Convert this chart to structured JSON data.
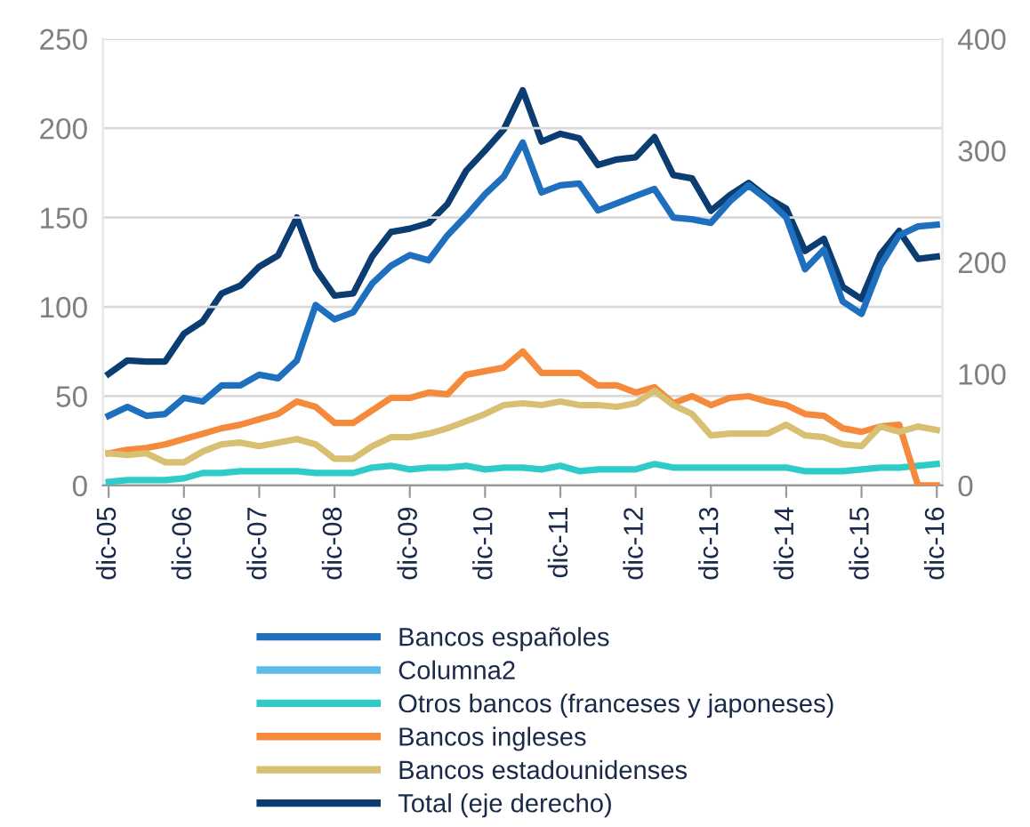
{
  "chart_data": {
    "type": "line",
    "categories": [
      "dic-05",
      null,
      null,
      null,
      "dic-06",
      null,
      null,
      null,
      "dic-07",
      null,
      null,
      null,
      "dic-08",
      null,
      null,
      null,
      "dic-09",
      null,
      null,
      null,
      "dic-10",
      null,
      null,
      null,
      "dic-11",
      null,
      null,
      null,
      "dic-12",
      null,
      null,
      null,
      "dic-13",
      null,
      null,
      null,
      "dic-14",
      null,
      null,
      null,
      "dic-15",
      null,
      null,
      null,
      "dic-16"
    ],
    "series": [
      {
        "name": "Bancos españoles",
        "color": "#1f6fbf",
        "values": [
          39,
          44,
          39,
          40,
          49,
          47,
          56,
          56,
          62,
          60,
          70,
          101,
          93,
          97,
          113,
          123,
          129,
          126,
          140,
          151,
          163,
          173,
          192,
          164,
          168,
          169,
          154,
          158,
          162,
          166,
          150,
          149,
          147,
          159,
          168,
          160,
          150,
          121,
          132,
          103,
          96,
          123,
          140,
          145,
          146
        ]
      },
      {
        "name": "Columna2",
        "color": "#5bbcea",
        "values": [
          null,
          null,
          null,
          null,
          null,
          null,
          null,
          null,
          null,
          null,
          null,
          null,
          null,
          null,
          null,
          null,
          null,
          null,
          null,
          null,
          null,
          null,
          null,
          null,
          null,
          null,
          null,
          null,
          null,
          null,
          null,
          null,
          null,
          null,
          null,
          null,
          null,
          null,
          null,
          null,
          null,
          null,
          null,
          null,
          null
        ]
      },
      {
        "name": "Otros bancos (franceses y japoneses)",
        "color": "#2ecbc8",
        "values": [
          2,
          3,
          3,
          3,
          4,
          7,
          7,
          8,
          8,
          8,
          8,
          7,
          7,
          7,
          10,
          11,
          9,
          10,
          10,
          11,
          9,
          10,
          10,
          9,
          11,
          8,
          9,
          9,
          9,
          12,
          10,
          10,
          10,
          10,
          10,
          10,
          10,
          8,
          8,
          8,
          9,
          10,
          10,
          11,
          12
        ]
      },
      {
        "name": "Bancos ingleses",
        "color": "#f58a3c",
        "values": [
          18,
          20,
          21,
          23,
          26,
          29,
          32,
          34,
          37,
          40,
          47,
          44,
          35,
          35,
          42,
          49,
          49,
          52,
          51,
          62,
          64,
          66,
          75,
          63,
          63,
          63,
          56,
          56,
          52,
          55,
          46,
          50,
          45,
          49,
          50,
          47,
          45,
          40,
          39,
          32,
          30,
          33,
          34,
          0,
          0
        ]
      },
      {
        "name": "Bancos estadounidenses",
        "color": "#d9bf72",
        "values": [
          18,
          17,
          18,
          13,
          13,
          19,
          23,
          24,
          22,
          24,
          26,
          23,
          15,
          15,
          22,
          27,
          27,
          29,
          32,
          36,
          40,
          45,
          46,
          45,
          47,
          45,
          45,
          44,
          46,
          53,
          45,
          40,
          28,
          29,
          29,
          29,
          34,
          28,
          27,
          23,
          22,
          33,
          30,
          33,
          31
        ]
      },
      {
        "name": "Total (eje derecho)",
        "color": "#0b3c72",
        "axis": "y2",
        "values": [
          100,
          112,
          111,
          111,
          136,
          147,
          172,
          179,
          196,
          206,
          240,
          194,
          170,
          172,
          205,
          227,
          230,
          235,
          252,
          282,
          300,
          319,
          354,
          308,
          315,
          311,
          287,
          292,
          294,
          312,
          278,
          275,
          246,
          260,
          271,
          258,
          248,
          210,
          221,
          178,
          167,
          207,
          228,
          203,
          205
        ]
      }
    ],
    "ylim": [
      0,
      250
    ],
    "yticks": [
      0,
      50,
      100,
      150,
      200,
      250
    ],
    "y2lim": [
      0,
      400
    ],
    "y2ticks": [
      0,
      100,
      200,
      300,
      400
    ],
    "grid": "y",
    "legend": "bottom",
    "line_style": "solid"
  }
}
